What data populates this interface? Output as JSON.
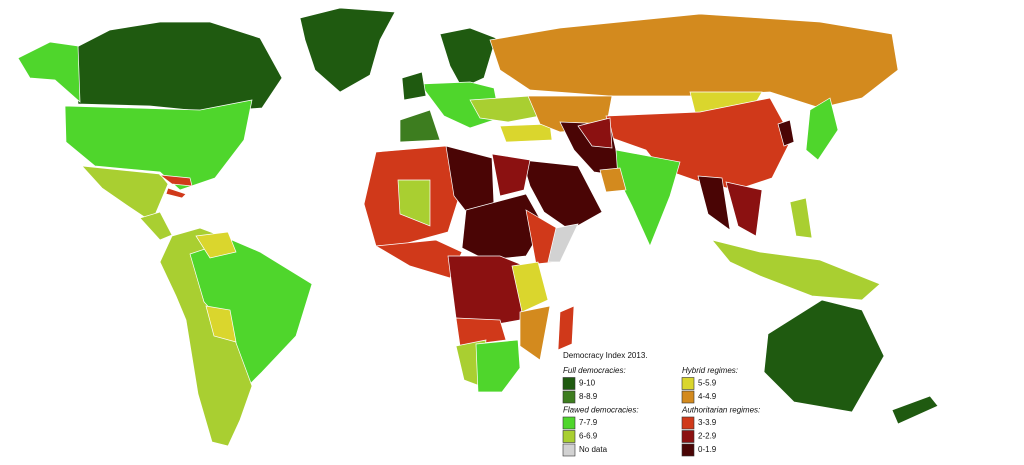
{
  "legend": {
    "title": "Democracy Index 2013.",
    "columns": [
      [
        {
          "heading": "Full democracies:",
          "items": [
            {
              "label": "9-10",
              "color": "#1f5a10"
            },
            {
              "label": "8-8.9",
              "color": "#3d7d1f"
            }
          ]
        },
        {
          "heading": "Flawed democracies:",
          "items": [
            {
              "label": "7-7.9",
              "color": "#4fd62c"
            },
            {
              "label": "6-6.9",
              "color": "#a9cf31"
            },
            {
              "label": "No data",
              "color": "#d2d2d2"
            }
          ]
        }
      ],
      [
        {
          "heading": "Hybrid regimes:",
          "items": [
            {
              "label": "5-5.9",
              "color": "#dad62d"
            },
            {
              "label": "4-4.9",
              "color": "#d38a1e"
            }
          ]
        },
        {
          "heading": "Authoritarian regimes:",
          "items": [
            {
              "label": "3-3.9",
              "color": "#d0391a"
            },
            {
              "label": "2-2.9",
              "color": "#8b1111"
            },
            {
              "label": "0-1.9",
              "color": "#4a0505"
            }
          ]
        }
      ]
    ]
  }
}
